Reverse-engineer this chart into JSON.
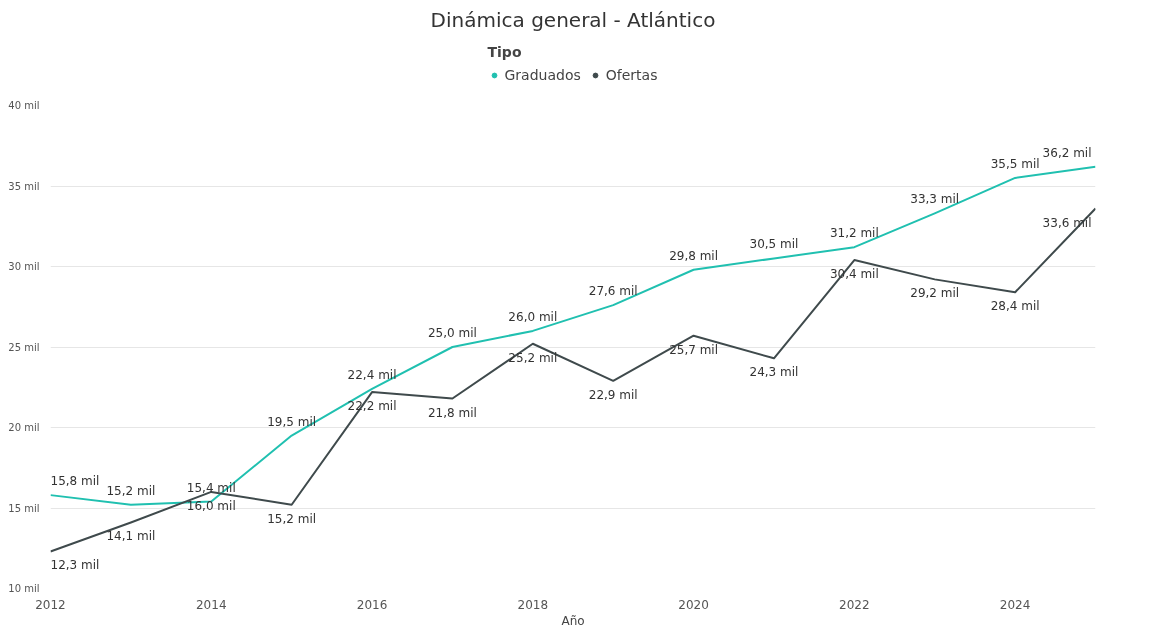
{
  "chart_data": {
    "type": "line",
    "title": "Dinámica general - Atlántico",
    "xlabel": "Año",
    "legend_title": "Tipo",
    "legend": "top",
    "grid": "y",
    "marker": "none",
    "line_style": "solid",
    "x": [
      2012,
      2013,
      2014,
      2015,
      2016,
      2017,
      2018,
      2019,
      2020,
      2021,
      2022,
      2023,
      2024,
      2025
    ],
    "xlim": [
      2012,
      2025
    ],
    "xticks": [
      2012,
      2014,
      2016,
      2018,
      2020,
      2022,
      2024
    ],
    "ylim": [
      10,
      40
    ],
    "yticks": [
      {
        "value": 10,
        "label": "10 mil"
      },
      {
        "value": 15,
        "label": "15 mil"
      },
      {
        "value": 20,
        "label": "20 mil"
      },
      {
        "value": 25,
        "label": "25 mil"
      },
      {
        "value": 30,
        "label": "30 mil"
      },
      {
        "value": 35,
        "label": "35 mil"
      },
      {
        "value": 40,
        "label": "40 mil"
      }
    ],
    "series": [
      {
        "name": "Graduados",
        "color": "#20c0b0",
        "values": [
          15.8,
          15.2,
          15.4,
          19.5,
          22.4,
          25.0,
          26.0,
          27.6,
          29.8,
          30.5,
          31.2,
          33.3,
          35.5,
          36.2
        ],
        "value_labels": [
          "15,8 mil",
          "15,2 mil",
          "15,4 mil",
          "19,5 mil",
          "22,4 mil",
          "25,0 mil",
          "26,0 mil",
          "27,6 mil",
          "29,8 mil",
          "30,5 mil",
          "31,2 mil",
          "33,3 mil",
          "35,5 mil",
          "36,2 mil"
        ]
      },
      {
        "name": "Ofertas",
        "color": "#3f4a4c",
        "values": [
          12.3,
          14.1,
          16.0,
          15.2,
          22.2,
          21.8,
          25.2,
          22.9,
          25.7,
          24.3,
          30.4,
          29.2,
          28.4,
          33.6
        ],
        "value_labels": [
          "12,3 mil",
          "14,1 mil",
          "16,0 mil",
          "15,2 mil",
          "22,2 mil",
          "21,8 mil",
          "25,2 mil",
          "22,9 mil",
          "25,7 mil",
          "24,3 mil",
          "30,4 mil",
          "29,2 mil",
          "28,4 mil",
          "33,6 mil"
        ]
      }
    ]
  }
}
